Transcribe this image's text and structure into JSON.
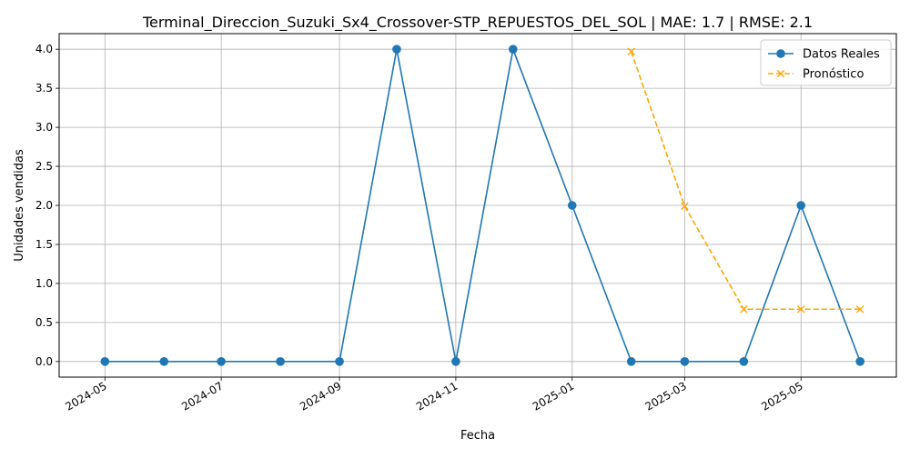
{
  "chart_data": {
    "type": "line",
    "title": "Terminal_Direccion_Suzuki_Sx4_Crossover-STP_REPUESTOS_DEL_SOL | MAE: 1.7 | RMSE: 2.1",
    "xlabel": "Fecha",
    "ylabel": "Unidades vendidas",
    "x_ticks": [
      "2024-05",
      "2024-07",
      "2024-09",
      "2024-11",
      "2025-01",
      "2025-03",
      "2025-05"
    ],
    "x_tick_dates": [
      "2024-05-01",
      "2024-07-01",
      "2024-09-01",
      "2024-11-01",
      "2025-01-01",
      "2025-03-01",
      "2025-05-01"
    ],
    "y_ticks": [
      "0.0",
      "0.5",
      "1.0",
      "1.5",
      "2.0",
      "2.5",
      "3.0",
      "3.5",
      "4.0"
    ],
    "xlim": [
      "2024-04-07",
      "2025-06-20"
    ],
    "ylim": [
      -0.2,
      4.2
    ],
    "grid": true,
    "legend_position": "top-right",
    "series": [
      {
        "name": "Datos Reales",
        "color": "#1f77b4",
        "marker": "circle",
        "linestyle": "solid",
        "x": [
          "2024-05-01",
          "2024-06-01",
          "2024-07-01",
          "2024-08-01",
          "2024-09-01",
          "2024-10-01",
          "2024-11-01",
          "2024-12-01",
          "2025-01-01",
          "2025-02-01",
          "2025-03-01",
          "2025-04-01",
          "2025-05-01",
          "2025-06-01"
        ],
        "values": [
          0,
          0,
          0,
          0,
          0,
          4,
          0,
          4,
          2,
          0,
          0,
          0,
          2,
          0
        ]
      },
      {
        "name": "Pronóstico",
        "color": "#ffa500",
        "marker": "x",
        "linestyle": "dashed",
        "x": [
          "2025-02-01",
          "2025-03-01",
          "2025-04-01",
          "2025-05-01",
          "2025-06-01"
        ],
        "values": [
          3.97,
          1.99,
          0.67,
          0.67,
          0.67
        ]
      }
    ]
  }
}
